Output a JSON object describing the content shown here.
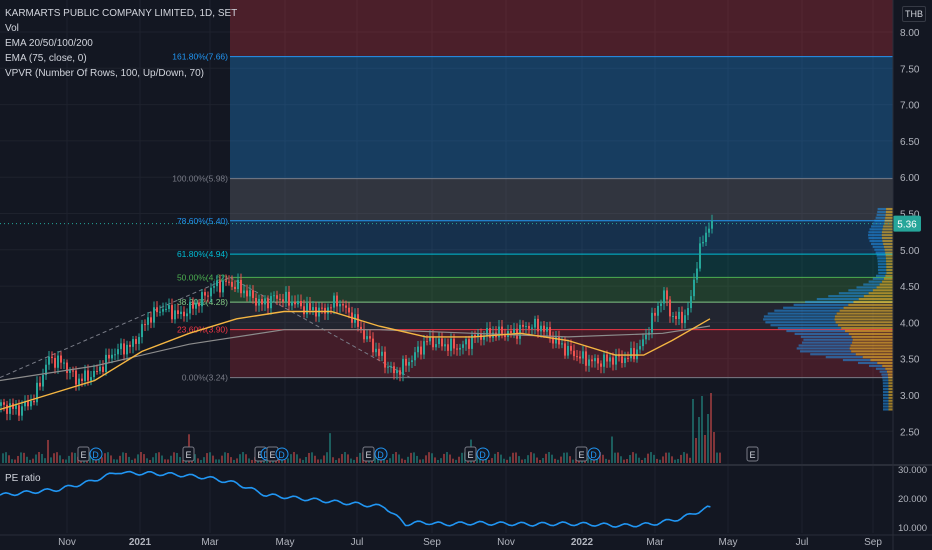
{
  "legend": {
    "title": "KARMARTS PUBLIC COMPANY LIMITED, 1D, SET",
    "vol": "Vol",
    "ema1": "EMA 20/50/100/200",
    "ema2": "EMA (75, close, 0)",
    "vpvr": "VPVR (Number Of Rows, 100, Up/Down, 70)"
  },
  "currency": "THB",
  "pe_label": "PE ratio",
  "colors": {
    "up": "#26a69a",
    "down": "#ef5350",
    "ema_orange": "#f5b642",
    "ema_grey": "#8c8c8c",
    "pe_line": "#2196f3",
    "price_tag": "#26a69a"
  },
  "chart_data": [
    {
      "type": "candlestick",
      "title": "KARMARTS PUBLIC COMPANY LIMITED, 1D, SET",
      "ylim": [
        2.4,
        8.4
      ],
      "y_ticks": [
        "8.00",
        "7.50",
        "7.00",
        "6.50",
        "6.00",
        "5.50",
        "5.00",
        "4.50",
        "4.00",
        "3.50",
        "3.00",
        "2.50"
      ],
      "x_ticks": [
        "Nov",
        "2021",
        "Mar",
        "May",
        "Jul",
        "Sep",
        "Nov",
        "2022",
        "Mar",
        "May",
        "Jul",
        "Sep"
      ],
      "last_price": "5.36",
      "price_path": [
        [
          0,
          2.85
        ],
        [
          0.4,
          2.8
        ],
        [
          0.7,
          2.95
        ],
        [
          1.0,
          3.5
        ],
        [
          1.3,
          3.45
        ],
        [
          1.6,
          3.2
        ],
        [
          2.0,
          3.3
        ],
        [
          2.4,
          3.6
        ],
        [
          2.8,
          3.7
        ],
        [
          3.1,
          4.05
        ],
        [
          3.4,
          4.2
        ],
        [
          3.8,
          4.1
        ],
        [
          4.2,
          4.3
        ],
        [
          4.5,
          4.5
        ],
        [
          4.8,
          4.55
        ],
        [
          5.1,
          4.45
        ],
        [
          5.5,
          4.25
        ],
        [
          5.8,
          4.35
        ],
        [
          6.1,
          4.3
        ],
        [
          6.4,
          4.2
        ],
        [
          6.8,
          4.15
        ],
        [
          7.1,
          4.3
        ],
        [
          7.4,
          4.1
        ],
        [
          7.7,
          3.8
        ],
        [
          8.0,
          3.55
        ],
        [
          8.3,
          3.3
        ],
        [
          8.6,
          3.45
        ],
        [
          9.0,
          3.75
        ],
        [
          9.3,
          3.7
        ],
        [
          9.7,
          3.65
        ],
        [
          10.0,
          3.8
        ],
        [
          10.4,
          3.85
        ],
        [
          10.8,
          3.85
        ],
        [
          11.1,
          3.95
        ],
        [
          11.4,
          3.95
        ],
        [
          11.7,
          3.75
        ],
        [
          12.0,
          3.6
        ],
        [
          12.3,
          3.5
        ],
        [
          12.6,
          3.45
        ],
        [
          12.9,
          3.5
        ],
        [
          13.2,
          3.5
        ],
        [
          13.5,
          3.65
        ],
        [
          13.8,
          4.1
        ],
        [
          14.0,
          4.4
        ],
        [
          14.2,
          4.05
        ],
        [
          14.5,
          4.1
        ],
        [
          14.7,
          4.8
        ],
        [
          14.85,
          5.2
        ],
        [
          15.0,
          5.36
        ]
      ],
      "ema_orange": [
        [
          0,
          2.8
        ],
        [
          1.0,
          3.0
        ],
        [
          2.0,
          3.2
        ],
        [
          3.0,
          3.6
        ],
        [
          4.0,
          3.85
        ],
        [
          5.0,
          4.05
        ],
        [
          6.0,
          4.15
        ],
        [
          7.0,
          4.15
        ],
        [
          8.0,
          3.95
        ],
        [
          9.0,
          3.8
        ],
        [
          10.0,
          3.8
        ],
        [
          11.0,
          3.85
        ],
        [
          12.0,
          3.75
        ],
        [
          13.0,
          3.55
        ],
        [
          13.6,
          3.55
        ],
        [
          14.2,
          3.75
        ],
        [
          15.0,
          4.05
        ]
      ],
      "ema_grey": [
        [
          0,
          3.2
        ],
        [
          2.0,
          3.4
        ],
        [
          4.0,
          3.7
        ],
        [
          6.0,
          3.9
        ],
        [
          8.0,
          3.9
        ],
        [
          10.0,
          3.85
        ],
        [
          12.0,
          3.8
        ],
        [
          14.0,
          3.85
        ],
        [
          15.0,
          3.95
        ]
      ],
      "fib_levels": [
        {
          "label": "161.80%(7.66)",
          "price": 7.66
        },
        {
          "label": "100.00%(5.98)",
          "price": 5.98
        },
        {
          "label": "78.60%(5.40)",
          "price": 5.4
        },
        {
          "label": "61.80%(4.94)",
          "price": 4.94
        },
        {
          "label": "50.00%(4.62)",
          "price": 4.62
        },
        {
          "label": "38.20%(4.28)",
          "price": 4.28
        },
        {
          "label": "23.60%(3.90)",
          "price": 3.9
        },
        {
          "label": "0.00%(3.24)",
          "price": 3.24
        }
      ],
      "event_markers": [
        {
          "label": "E",
          "t": 2.7
        },
        {
          "label": "D",
          "t": 3.1
        },
        {
          "label": "E",
          "t": 6.2
        },
        {
          "label": "E",
          "t": 8.6
        },
        {
          "label": "D",
          "t": 8.8
        },
        {
          "label": "E",
          "t": 9.0
        },
        {
          "label": "D",
          "t": 9.3
        },
        {
          "label": "E",
          "t": 12.2
        },
        {
          "label": "D",
          "t": 12.6
        },
        {
          "label": "E",
          "t": 15.6
        },
        {
          "label": "D",
          "t": 16.0
        },
        {
          "label": "E",
          "t": 19.3
        },
        {
          "label": "D",
          "t": 19.7
        },
        {
          "label": "E",
          "t": 25.0
        }
      ]
    },
    {
      "type": "line",
      "title": "PE ratio",
      "ylim": [
        8,
        31
      ],
      "y_ticks": [
        "30.000",
        "20.000",
        "10.000"
      ],
      "x": [
        0,
        1,
        2,
        3,
        4,
        4.3,
        5,
        6,
        7,
        8,
        8.5,
        9,
        10,
        11,
        12,
        13,
        13.7,
        14,
        14.5,
        15
      ],
      "values": [
        21,
        22,
        23,
        25.5,
        29,
        28.5,
        28.5,
        28,
        27,
        25,
        23,
        21,
        20,
        19,
        18,
        17,
        11,
        11.5,
        11.5,
        11
      ],
      "x2": [
        15,
        16,
        17,
        18,
        19,
        20,
        21,
        22,
        23,
        24
      ],
      "values2": [
        11,
        11.4,
        11.2,
        11,
        11.2,
        11,
        10.5,
        11,
        13,
        17
      ]
    }
  ]
}
